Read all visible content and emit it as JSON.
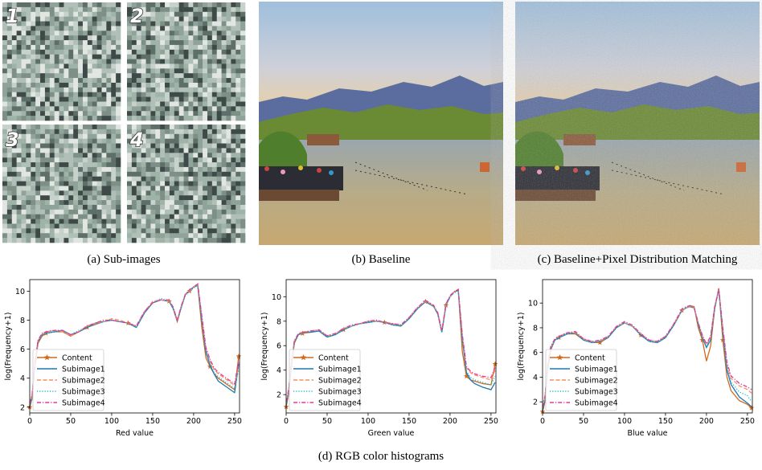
{
  "figure": {
    "panels": [
      {
        "caption": "(a) Sub-images",
        "tile_labels": [
          "1",
          "2",
          "3",
          "4"
        ]
      },
      {
        "caption": "(b) Baseline"
      },
      {
        "caption": "(c) Baseline+Pixel Distribution Matching"
      }
    ],
    "caption": "(d) RGB color histograms"
  },
  "chart_data": [
    {
      "type": "line",
      "xlabel": "Red value",
      "ylabel": "log(Frequency+1)",
      "xlim": [
        0,
        256
      ],
      "ylim": [
        1.6,
        10.8
      ],
      "xticks": [
        0,
        50,
        100,
        150,
        200,
        250
      ],
      "yticks": [
        2,
        4,
        6,
        8,
        10
      ],
      "legend": "lower left",
      "x": [
        0,
        3,
        6,
        10,
        15,
        20,
        30,
        40,
        50,
        60,
        70,
        80,
        90,
        100,
        110,
        120,
        130,
        140,
        150,
        160,
        170,
        175,
        180,
        185,
        190,
        195,
        200,
        205,
        210,
        215,
        220,
        225,
        230,
        240,
        250,
        255
      ],
      "series": [
        {
          "name": "Content",
          "color": "#d2691e",
          "dash": "solid",
          "marker": "*",
          "values": [
            2.0,
            2.6,
            4.6,
            6.4,
            6.9,
            7.1,
            7.2,
            7.2,
            6.9,
            7.2,
            7.5,
            7.7,
            7.9,
            8.0,
            7.9,
            7.8,
            7.5,
            8.5,
            9.2,
            9.4,
            9.3,
            8.8,
            7.9,
            8.9,
            9.8,
            10.0,
            10.3,
            10.4,
            7.5,
            5.4,
            4.8,
            4.3,
            4.0,
            3.6,
            3.2,
            5.5
          ]
        },
        {
          "name": "Subimage1",
          "color": "#1f77b4",
          "dash": "solid",
          "values": [
            2.1,
            2.8,
            4.8,
            6.5,
            7.0,
            7.1,
            7.2,
            7.3,
            7.0,
            7.2,
            7.5,
            7.8,
            7.9,
            8.0,
            7.9,
            7.8,
            7.5,
            8.5,
            9.2,
            9.4,
            9.3,
            8.8,
            8.0,
            8.9,
            9.8,
            10.0,
            10.3,
            10.4,
            8.0,
            5.8,
            4.9,
            4.3,
            3.8,
            3.4,
            3.0,
            5.0
          ]
        },
        {
          "name": "Subimage2",
          "color": "#ff8c61",
          "dash": "dashed",
          "values": [
            2.2,
            2.9,
            4.9,
            6.6,
            7.0,
            7.2,
            7.3,
            7.2,
            6.9,
            7.2,
            7.6,
            7.8,
            7.9,
            8.1,
            8.0,
            7.8,
            7.6,
            8.6,
            9.3,
            9.4,
            9.3,
            8.9,
            8.0,
            9.0,
            9.8,
            10.0,
            10.3,
            10.5,
            8.2,
            6.0,
            5.2,
            4.6,
            4.3,
            3.9,
            3.5,
            4.8
          ]
        },
        {
          "name": "Subimage3",
          "color": "#17becf",
          "dash": "dotted",
          "values": [
            2.0,
            2.7,
            4.7,
            6.5,
            7.0,
            7.1,
            7.2,
            7.3,
            7.0,
            7.3,
            7.5,
            7.7,
            7.9,
            8.0,
            7.9,
            7.8,
            7.5,
            8.5,
            9.2,
            9.5,
            9.3,
            8.8,
            7.9,
            8.9,
            9.7,
            10.0,
            10.2,
            10.4,
            8.1,
            5.9,
            5.0,
            4.4,
            4.1,
            3.7,
            3.3,
            4.6
          ]
        },
        {
          "name": "Subimage4",
          "color": "#e6399b",
          "dash": "dashdot",
          "values": [
            2.3,
            2.9,
            4.9,
            6.6,
            7.1,
            7.2,
            7.3,
            7.3,
            7.0,
            7.2,
            7.6,
            7.8,
            8.0,
            8.0,
            7.9,
            7.8,
            7.6,
            8.6,
            9.2,
            9.4,
            9.4,
            8.9,
            8.0,
            9.0,
            9.8,
            10.1,
            10.3,
            10.5,
            8.3,
            6.1,
            5.3,
            4.7,
            4.4,
            4.0,
            3.6,
            5.2
          ]
        }
      ]
    },
    {
      "type": "line",
      "xlabel": "Green value",
      "ylabel": "log(Frequency+1)",
      "xlim": [
        0,
        256
      ],
      "ylim": [
        0.5,
        11.4
      ],
      "xticks": [
        0,
        50,
        100,
        150,
        200,
        250
      ],
      "yticks": [
        2,
        4,
        6,
        8,
        10
      ],
      "legend": "lower left",
      "x": [
        0,
        3,
        6,
        10,
        15,
        20,
        30,
        40,
        50,
        60,
        70,
        80,
        90,
        100,
        110,
        120,
        130,
        140,
        150,
        160,
        170,
        175,
        180,
        185,
        190,
        195,
        200,
        205,
        210,
        215,
        220,
        225,
        230,
        240,
        250,
        255
      ],
      "series": [
        {
          "name": "Content",
          "color": "#d2691e",
          "dash": "solid",
          "marker": "*",
          "values": [
            1.0,
            2.0,
            4.0,
            6.2,
            6.9,
            7.0,
            7.1,
            7.2,
            6.7,
            6.9,
            7.3,
            7.6,
            7.8,
            7.9,
            8.0,
            7.9,
            7.7,
            7.6,
            8.2,
            9.0,
            9.6,
            9.4,
            9.2,
            8.6,
            7.1,
            9.3,
            10.0,
            10.4,
            10.6,
            5.5,
            3.5,
            3.2,
            3.1,
            2.9,
            2.8,
            4.5
          ]
        },
        {
          "name": "Subimage1",
          "color": "#1f77b4",
          "dash": "solid",
          "values": [
            1.2,
            2.2,
            4.2,
            6.3,
            6.9,
            7.1,
            7.1,
            7.2,
            6.7,
            6.9,
            7.3,
            7.6,
            7.8,
            7.9,
            8.0,
            7.9,
            7.7,
            7.6,
            8.2,
            9.0,
            9.6,
            9.4,
            9.2,
            8.6,
            7.1,
            9.3,
            10.0,
            10.4,
            10.5,
            6.5,
            3.8,
            3.2,
            2.9,
            2.6,
            2.4,
            3.0
          ]
        },
        {
          "name": "Subimage2",
          "color": "#ff8c61",
          "dash": "dashed",
          "values": [
            1.3,
            2.3,
            4.3,
            6.4,
            7.0,
            7.1,
            7.2,
            7.3,
            6.8,
            7.0,
            7.4,
            7.6,
            7.8,
            8.0,
            8.0,
            7.9,
            7.8,
            7.7,
            8.3,
            9.1,
            9.6,
            9.5,
            9.2,
            8.7,
            7.2,
            9.4,
            10.0,
            10.4,
            10.6,
            6.8,
            4.2,
            3.8,
            3.6,
            3.4,
            3.2,
            4.0
          ]
        },
        {
          "name": "Subimage3",
          "color": "#17becf",
          "dash": "dotted",
          "values": [
            1.1,
            2.1,
            4.1,
            6.3,
            6.9,
            7.0,
            7.2,
            7.2,
            6.7,
            6.9,
            7.3,
            7.6,
            7.8,
            7.9,
            8.0,
            7.9,
            7.7,
            7.6,
            8.2,
            9.0,
            9.6,
            9.4,
            9.2,
            8.6,
            7.1,
            9.3,
            10.0,
            10.3,
            10.5,
            6.6,
            3.9,
            3.4,
            3.2,
            3.0,
            2.8,
            3.5
          ]
        },
        {
          "name": "Subimage4",
          "color": "#e6399b",
          "dash": "dashdot",
          "values": [
            1.4,
            2.4,
            4.4,
            6.4,
            7.0,
            7.1,
            7.2,
            7.3,
            6.8,
            7.0,
            7.4,
            7.7,
            7.8,
            8.0,
            8.1,
            7.9,
            7.8,
            7.7,
            8.3,
            9.1,
            9.7,
            9.5,
            9.3,
            8.7,
            7.2,
            9.4,
            10.1,
            10.4,
            10.6,
            6.9,
            4.3,
            3.9,
            3.7,
            3.5,
            3.4,
            4.2
          ]
        }
      ]
    },
    {
      "type": "line",
      "xlabel": "Blue value",
      "ylabel": "log(Frequency+1)",
      "xlim": [
        0,
        256
      ],
      "ylim": [
        1.1,
        11.9
      ],
      "xticks": [
        0,
        50,
        100,
        150,
        200,
        250
      ],
      "yticks": [
        2,
        4,
        6,
        8,
        10
      ],
      "legend": "lower left",
      "x": [
        0,
        3,
        6,
        10,
        15,
        20,
        30,
        40,
        50,
        60,
        70,
        80,
        90,
        100,
        110,
        120,
        130,
        140,
        150,
        160,
        170,
        175,
        180,
        185,
        190,
        195,
        200,
        205,
        210,
        215,
        220,
        225,
        230,
        240,
        250,
        255
      ],
      "series": [
        {
          "name": "Content",
          "color": "#d2691e",
          "dash": "solid",
          "marker": "*",
          "values": [
            1.2,
            2.0,
            4.5,
            6.2,
            7.0,
            7.2,
            7.5,
            7.5,
            7.0,
            6.8,
            6.8,
            7.2,
            8.0,
            8.4,
            8.1,
            7.4,
            6.9,
            6.8,
            7.2,
            8.2,
            9.4,
            9.6,
            9.8,
            9.7,
            8.0,
            7.0,
            5.3,
            6.5,
            9.5,
            11.2,
            7.0,
            4.0,
            2.9,
            2.1,
            1.8,
            1.5
          ]
        },
        {
          "name": "Subimage1",
          "color": "#1f77b4",
          "dash": "solid",
          "values": [
            1.3,
            2.2,
            4.6,
            6.3,
            7.0,
            7.2,
            7.5,
            7.6,
            7.0,
            6.8,
            6.9,
            7.2,
            8.0,
            8.4,
            8.1,
            7.4,
            6.9,
            6.8,
            7.2,
            8.2,
            9.4,
            9.6,
            9.7,
            9.6,
            8.3,
            7.2,
            6.4,
            7.0,
            9.6,
            11.1,
            7.6,
            4.6,
            3.4,
            2.4,
            1.9,
            1.6
          ]
        },
        {
          "name": "Subimage2",
          "color": "#ff8c61",
          "dash": "dashed",
          "values": [
            1.5,
            2.4,
            4.8,
            6.4,
            7.1,
            7.3,
            7.6,
            7.6,
            7.1,
            6.9,
            6.9,
            7.3,
            8.1,
            8.4,
            8.1,
            7.5,
            7.0,
            6.9,
            7.3,
            8.3,
            9.4,
            9.6,
            9.7,
            9.6,
            8.4,
            7.3,
            6.6,
            7.2,
            9.7,
            11.1,
            7.9,
            5.0,
            3.9,
            3.3,
            3.0,
            2.7
          ]
        },
        {
          "name": "Subimage3",
          "color": "#17becf",
          "dash": "dotted",
          "values": [
            1.4,
            2.3,
            4.7,
            6.3,
            7.0,
            7.2,
            7.5,
            7.6,
            7.0,
            6.8,
            6.9,
            7.2,
            8.0,
            8.4,
            8.1,
            7.4,
            6.9,
            6.8,
            7.2,
            8.2,
            9.4,
            9.6,
            9.7,
            9.6,
            8.3,
            7.2,
            6.5,
            7.1,
            9.6,
            11.0,
            7.7,
            4.8,
            3.6,
            2.8,
            2.5,
            2.0
          ]
        },
        {
          "name": "Subimage4",
          "color": "#e6399b",
          "dash": "dashdot",
          "values": [
            1.6,
            2.5,
            4.9,
            6.5,
            7.1,
            7.3,
            7.6,
            7.7,
            7.1,
            6.9,
            7.0,
            7.3,
            8.1,
            8.5,
            8.2,
            7.5,
            7.0,
            6.9,
            7.3,
            8.3,
            9.5,
            9.7,
            9.8,
            9.6,
            8.4,
            7.4,
            6.7,
            7.3,
            9.7,
            11.1,
            8.0,
            5.2,
            4.1,
            3.5,
            3.2,
            3.0
          ]
        }
      ]
    }
  ]
}
